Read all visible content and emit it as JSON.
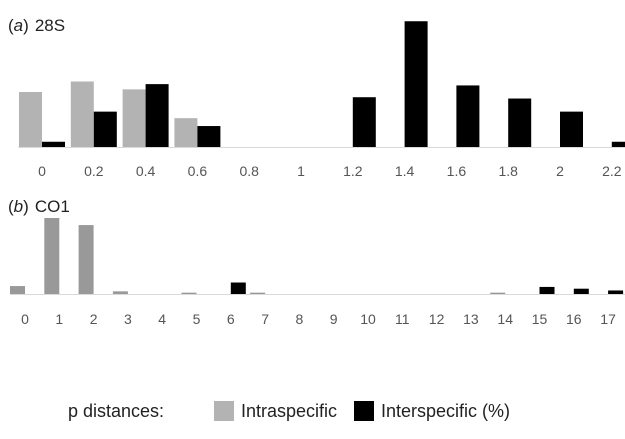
{
  "legend": {
    "prefix": "p distances:",
    "items": [
      {
        "label": "Intraspecific",
        "color": "#b3b3b3"
      },
      {
        "label": "Interspecific (%)",
        "color": "#000000"
      }
    ]
  },
  "chart_data": [
    {
      "type": "bar",
      "panel_letter": "a",
      "title": "28S",
      "categories": [
        "0",
        "0.2",
        "0.4",
        "0.6",
        "0.8",
        "1",
        "1.2",
        "1.4",
        "1.6",
        "1.8",
        "2",
        "2.2"
      ],
      "series": [
        {
          "name": "Intraspecific",
          "color": "#b3b3b3",
          "values": [
            4.2,
            5.0,
            4.4,
            2.2,
            0,
            0,
            0,
            0,
            0,
            0,
            0,
            0
          ]
        },
        {
          "name": "Interspecific (%)",
          "color": "#000000",
          "values": [
            0.4,
            2.7,
            4.8,
            1.6,
            0,
            0,
            3.8,
            9.6,
            4.7,
            3.7,
            2.7,
            0.4
          ]
        }
      ],
      "ylim": [
        0,
        10
      ],
      "grid": false
    },
    {
      "type": "bar",
      "panel_letter": "b",
      "title": "CO1",
      "categories": [
        "0",
        "1",
        "2",
        "3",
        "4",
        "5",
        "6",
        "7",
        "8",
        "9",
        "10",
        "11",
        "12",
        "13",
        "14",
        "15",
        "16",
        "17"
      ],
      "series": [
        {
          "name": "Intraspecific",
          "color": "#999999",
          "values": [
            0.9,
            8.6,
            7.8,
            0.3,
            0,
            0.15,
            0,
            0.15,
            0,
            0,
            0,
            0,
            0,
            0,
            0.15,
            0,
            0,
            0
          ]
        },
        {
          "name": "Interspecific (%)",
          "color": "#000000",
          "values": [
            0,
            0,
            0,
            0,
            0,
            0,
            1.3,
            0,
            0,
            0,
            0,
            0,
            0,
            0,
            0,
            0.8,
            0.6,
            0.4
          ]
        }
      ],
      "ylim": [
        0,
        8.6
      ],
      "grid": false
    }
  ]
}
